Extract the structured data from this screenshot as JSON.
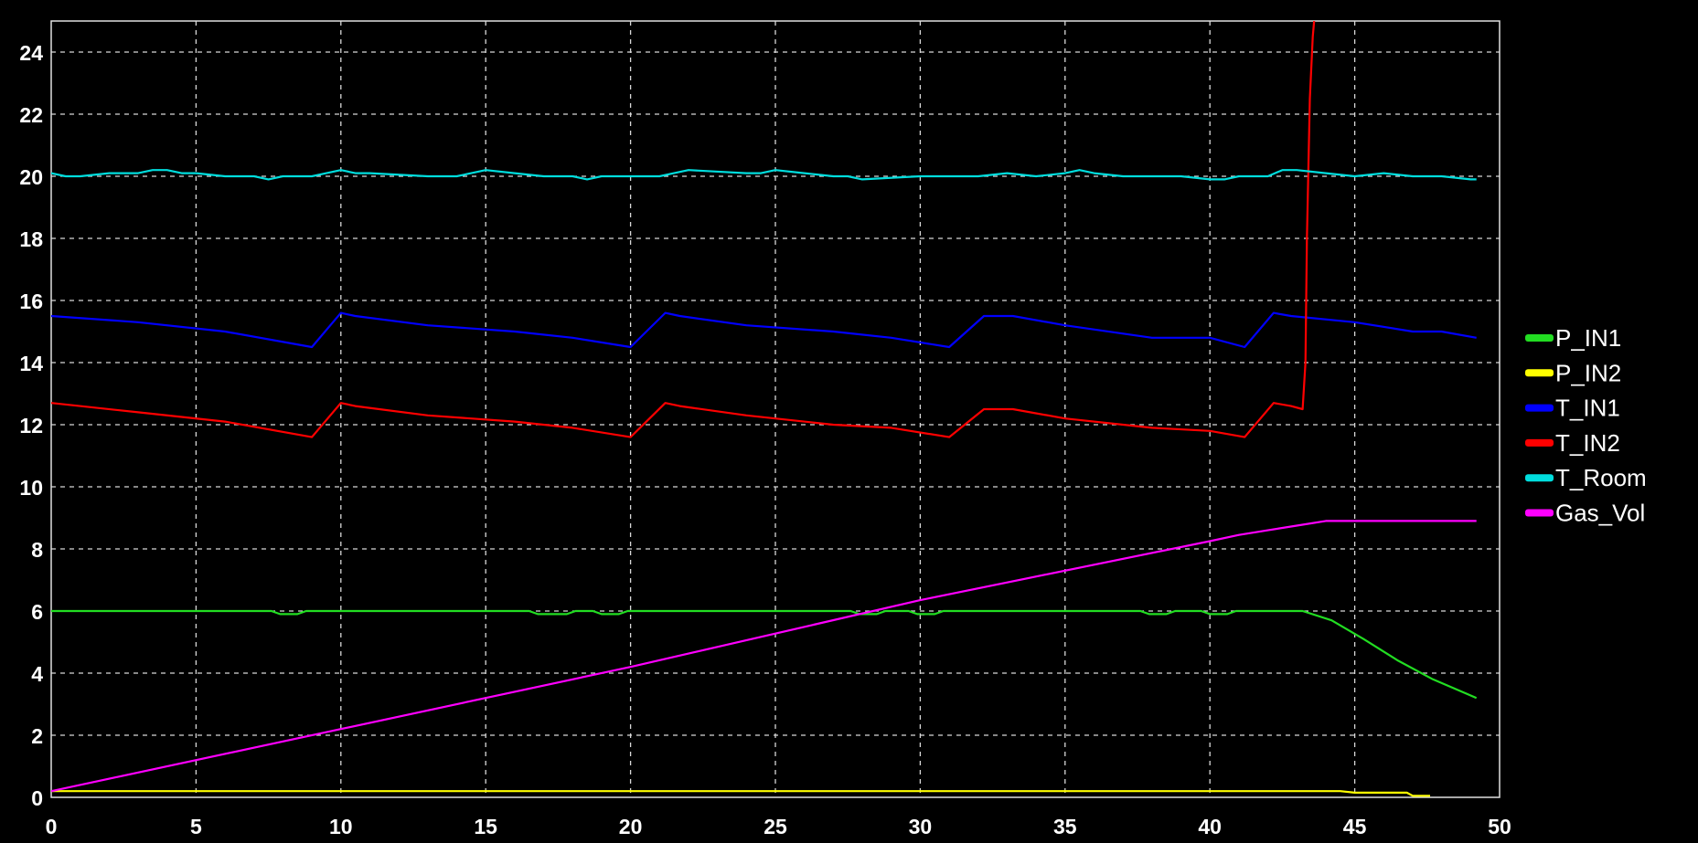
{
  "chart_data": {
    "type": "line",
    "title": "",
    "xlabel": "",
    "ylabel": "",
    "xlim": [
      0,
      50
    ],
    "ylim": [
      0,
      25
    ],
    "xticks": [
      "0",
      "5",
      "10",
      "15",
      "20",
      "25",
      "30",
      "35",
      "40",
      "45",
      "50"
    ],
    "yticks": [
      "0",
      "2",
      "4",
      "6",
      "8",
      "10",
      "12",
      "14",
      "16",
      "18",
      "20",
      "22",
      "24"
    ],
    "grid": true,
    "legend_position": "right",
    "background": "#000000",
    "series": [
      {
        "name": "P_IN1",
        "color": "#22dd22",
        "x": [
          0,
          7.6,
          7.9,
          8.5,
          8.8,
          16.5,
          16.8,
          17.8,
          18.1,
          18.7,
          19.0,
          19.6,
          19.9,
          27.6,
          27.9,
          28.5,
          28.8,
          29.6,
          29.9,
          30.5,
          30.8,
          37.6,
          37.9,
          38.5,
          38.8,
          39.7,
          40.0,
          40.6,
          40.9,
          43.2,
          44.2,
          45.3,
          46.5,
          47.7,
          49.2
        ],
        "y": [
          6.0,
          6.0,
          5.9,
          5.9,
          6.0,
          6.0,
          5.9,
          5.9,
          6.0,
          6.0,
          5.9,
          5.9,
          6.0,
          6.0,
          5.9,
          5.9,
          6.0,
          6.0,
          5.9,
          5.9,
          6.0,
          6.0,
          5.9,
          5.9,
          6.0,
          6.0,
          5.9,
          5.9,
          6.0,
          6.0,
          5.7,
          5.1,
          4.4,
          3.8,
          3.2
        ]
      },
      {
        "name": "P_IN2",
        "color": "#ffff00",
        "x": [
          0,
          44.5,
          45.0,
          46.8,
          47.0,
          47.6
        ],
        "y": [
          0.2,
          0.2,
          0.15,
          0.15,
          0.05,
          0.05
        ]
      },
      {
        "name": "T_IN1",
        "color": "#0000ff",
        "x": [
          0,
          3,
          6,
          9,
          10,
          10.5,
          13,
          16,
          18,
          20,
          21.2,
          21.7,
          24,
          27,
          29,
          31,
          32.2,
          33.2,
          35,
          38,
          40,
          41.2,
          42.2,
          42.8,
          45,
          47,
          48,
          49.2
        ],
        "y": [
          15.5,
          15.3,
          15.0,
          14.5,
          15.6,
          15.5,
          15.2,
          15.0,
          14.8,
          14.5,
          15.6,
          15.5,
          15.2,
          15.0,
          14.8,
          14.5,
          15.5,
          15.5,
          15.2,
          14.8,
          14.8,
          14.5,
          15.6,
          15.5,
          15.3,
          15.0,
          15.0,
          14.8
        ]
      },
      {
        "name": "T_IN2",
        "color": "#ff0000",
        "x": [
          0,
          3,
          6,
          9,
          10,
          10.5,
          13,
          16,
          18,
          20,
          21.2,
          21.7,
          24,
          27,
          29,
          31,
          32.2,
          33.2,
          35,
          38,
          40,
          41.2,
          42.2,
          42.8,
          43.2,
          43.3,
          43.35,
          43.45,
          43.55,
          43.6
        ],
        "y": [
          12.7,
          12.4,
          12.1,
          11.6,
          12.7,
          12.6,
          12.3,
          12.1,
          11.9,
          11.6,
          12.7,
          12.6,
          12.3,
          12.0,
          11.9,
          11.6,
          12.5,
          12.5,
          12.2,
          11.9,
          11.8,
          11.6,
          12.7,
          12.6,
          12.5,
          14.0,
          18.0,
          22.5,
          24.5,
          25.0
        ]
      },
      {
        "name": "T_Room",
        "color": "#00dddd",
        "x": [
          0,
          0.5,
          1,
          2,
          3,
          3.5,
          4,
          4.5,
          5,
          6,
          7,
          7.5,
          8,
          9,
          9.5,
          10,
          10.5,
          11,
          13,
          14,
          14.5,
          15,
          16,
          17,
          18,
          18.5,
          19,
          21,
          21.5,
          22,
          24,
          24.5,
          25,
          26,
          27,
          27.5,
          28,
          30,
          31,
          32,
          33,
          34,
          35,
          35.5,
          36,
          37,
          38,
          39,
          40,
          40.5,
          41,
          42,
          42.5,
          43,
          44,
          45,
          46,
          47,
          48,
          49,
          49.2
        ],
        "y": [
          20.1,
          20.0,
          20.0,
          20.1,
          20.1,
          20.2,
          20.2,
          20.1,
          20.1,
          20.0,
          20.0,
          19.9,
          20.0,
          20.0,
          20.1,
          20.2,
          20.1,
          20.1,
          20.0,
          20.0,
          20.1,
          20.2,
          20.1,
          20.0,
          20.0,
          19.9,
          20.0,
          20.0,
          20.1,
          20.2,
          20.1,
          20.1,
          20.2,
          20.1,
          20.0,
          20.0,
          19.9,
          20.0,
          20.0,
          20.0,
          20.1,
          20.0,
          20.1,
          20.2,
          20.1,
          20.0,
          20.0,
          20.0,
          19.9,
          19.9,
          20.0,
          20.0,
          20.2,
          20.2,
          20.1,
          20.0,
          20.1,
          20.0,
          20.0,
          19.9,
          19.9
        ]
      },
      {
        "name": "Gas_Vol",
        "color": "#ff00ff",
        "x": [
          0,
          10,
          20,
          30,
          40,
          41,
          42,
          43,
          44,
          45,
          49.2
        ],
        "y": [
          0.2,
          2.2,
          4.2,
          6.35,
          8.25,
          8.45,
          8.6,
          8.75,
          8.9,
          8.9,
          8.9
        ]
      }
    ]
  }
}
